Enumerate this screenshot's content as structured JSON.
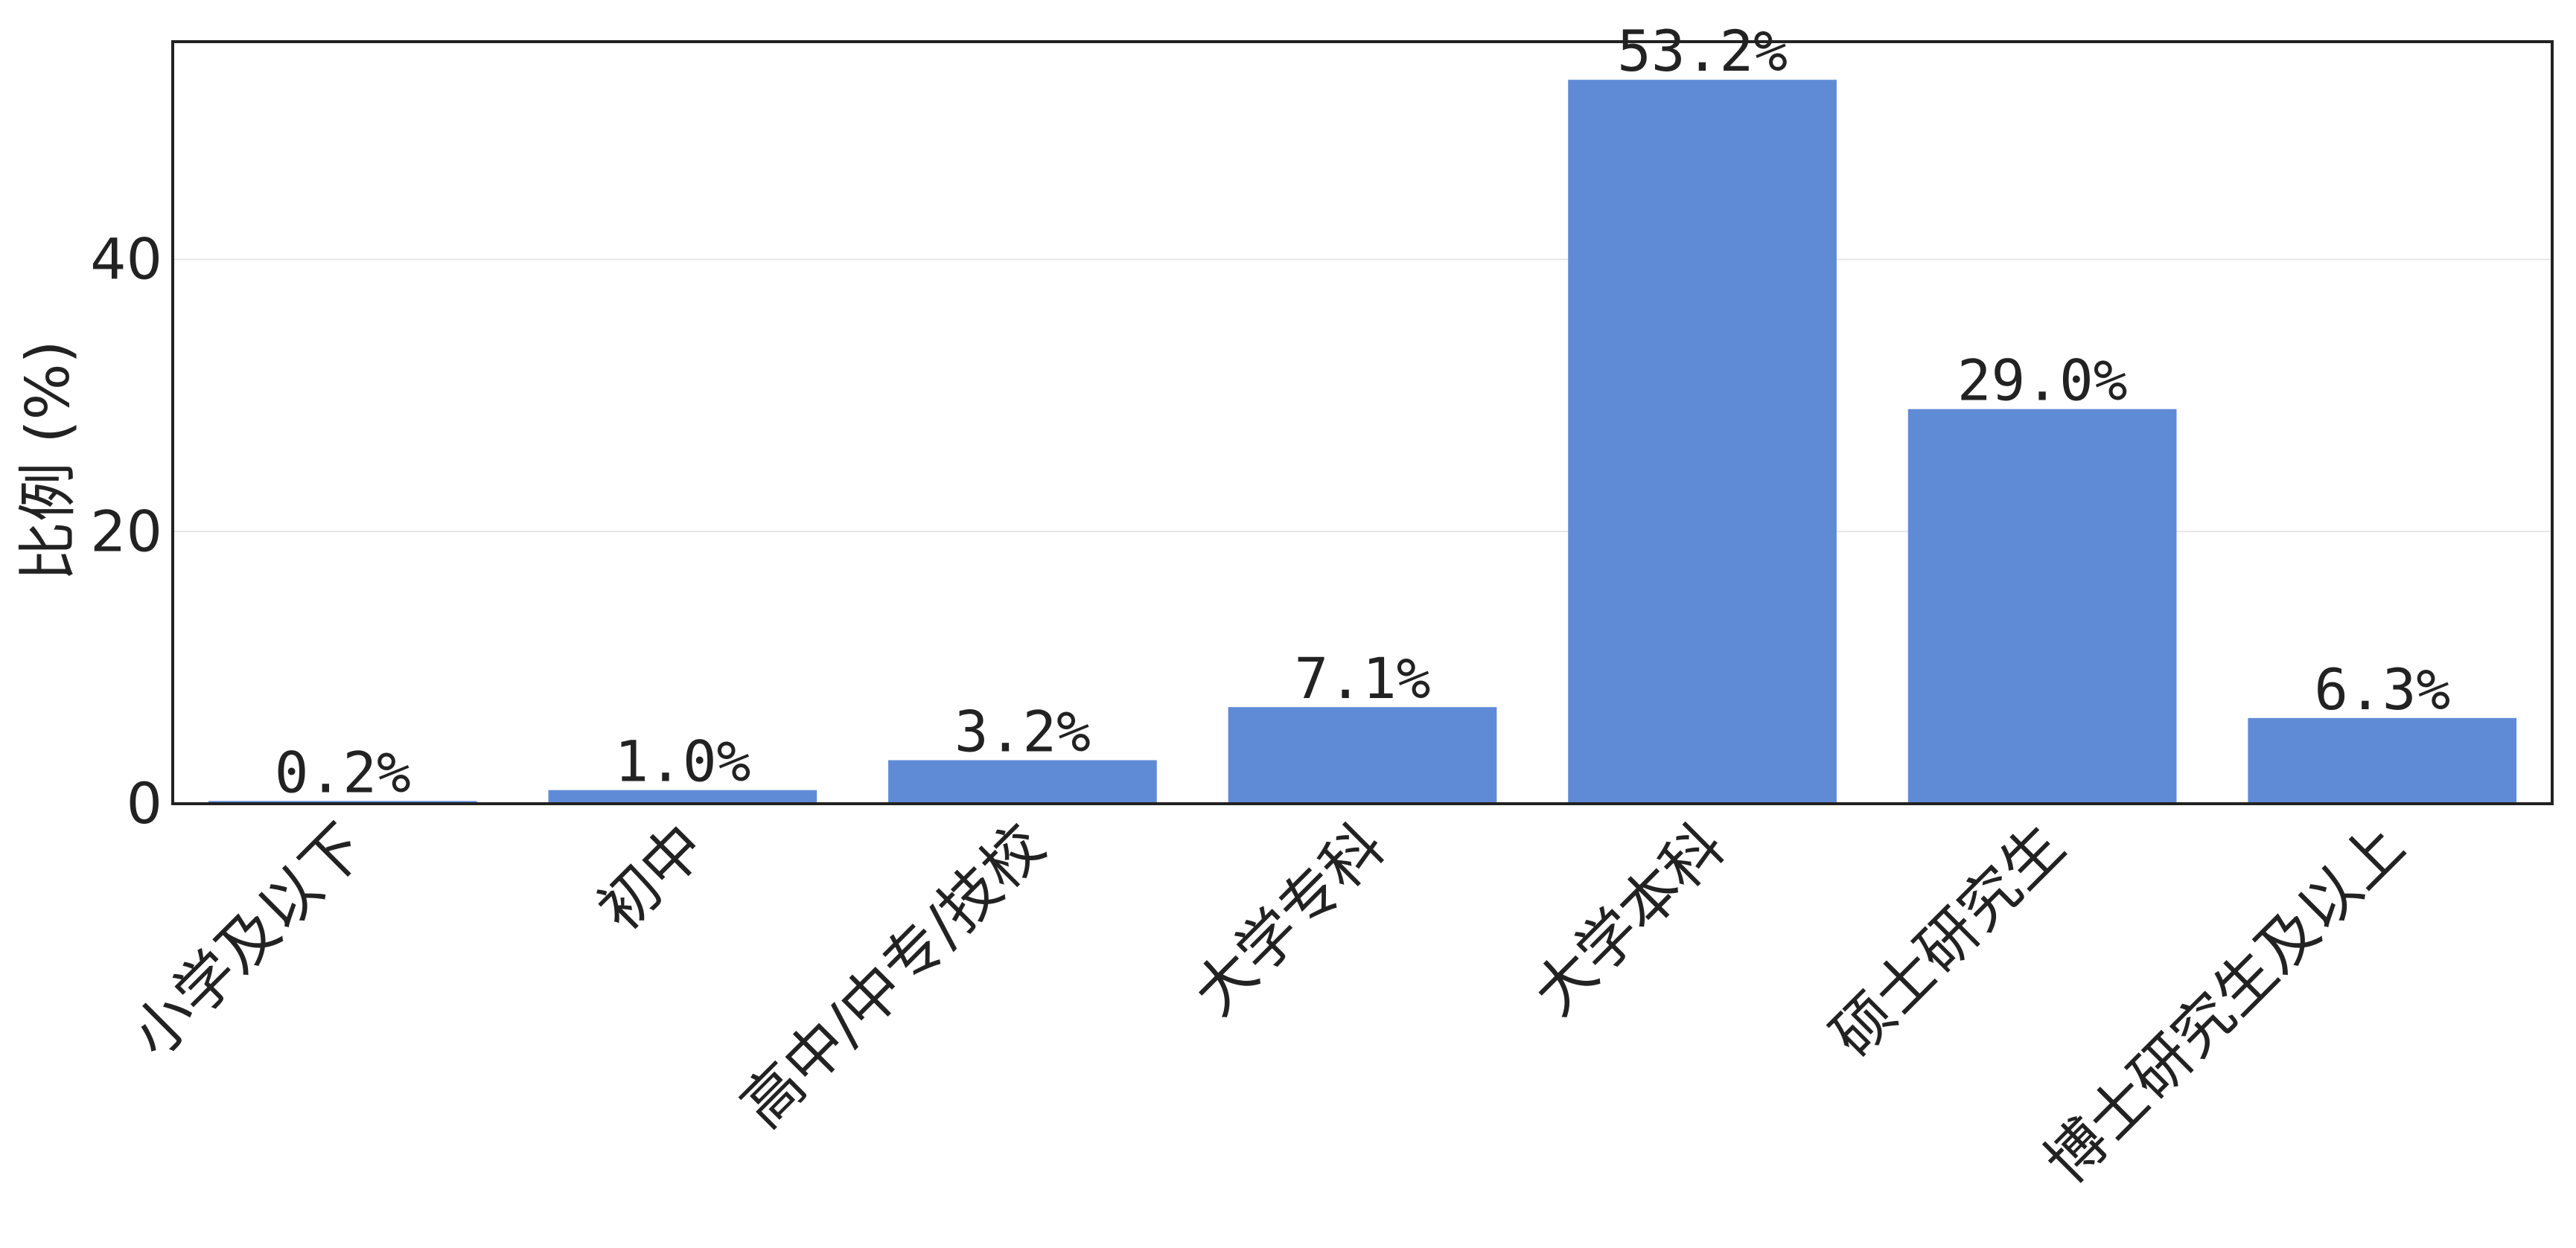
{
  "chart_data": {
    "type": "bar",
    "title": "",
    "xlabel": "",
    "ylabel": "比例 (%)",
    "categories": [
      "小学及以下",
      "初中",
      "高中/中专/技校",
      "大学专科",
      "大学本科",
      "硕士研究生",
      "博士研究生及以上"
    ],
    "values": [
      0.2,
      1.0,
      3.2,
      7.1,
      53.2,
      29.0,
      6.3
    ],
    "value_labels": [
      "0.2%",
      "1.0%",
      "3.2%",
      "7.1%",
      "53.2%",
      "29.0%",
      "6.3%"
    ],
    "yticks": [
      0,
      20,
      40
    ],
    "ylim": [
      0,
      56
    ],
    "grid": "horizontal",
    "legend": "none",
    "colors": {
      "bar": "#5f8bd6",
      "axis": "#222222",
      "grid": "#e6e6e6",
      "text": "#222222"
    }
  }
}
